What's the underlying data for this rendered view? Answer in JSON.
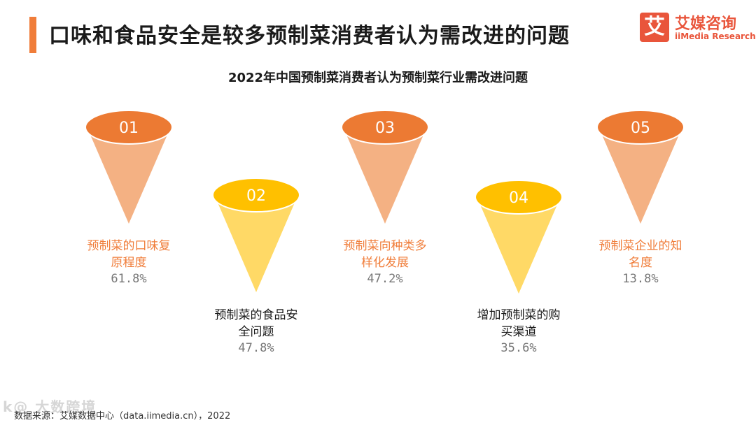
{
  "header": {
    "title": "口味和食品安全是较多预制菜消费者认为需改进的问题"
  },
  "logo": {
    "mark": "艾",
    "name_cn": "艾媒咨询",
    "name_en": "iiMedia Research"
  },
  "colors": {
    "accent": "#f07d3a",
    "orange_cap": "#ec7a33",
    "orange_cone": "#f4b183",
    "yellow_cap": "#ffc000",
    "yellow_cone": "#ffd966",
    "logo_red": "#e9553b"
  },
  "chart_data": {
    "type": "bar",
    "title": "2022年中国预制菜消费者认为预制菜行业需改进问题",
    "unit": "%",
    "categories": [
      "预制菜的口味复原程度",
      "预制菜的食品安全问题",
      "预制菜向种类多样化发展",
      "增加预制菜的购买渠道",
      "预制菜企业的知名度"
    ],
    "numbers": [
      "01",
      "02",
      "03",
      "04",
      "05"
    ],
    "values": [
      61.8,
      47.8,
      47.2,
      35.6,
      13.8
    ],
    "value_labels": [
      "61.8%",
      "47.8%",
      "47.2%",
      "35.6%",
      "13.8%"
    ],
    "label_lines": [
      [
        "预制菜的口味复",
        "原程度"
      ],
      [
        "预制菜的食品安",
        "全问题"
      ],
      [
        "预制菜向种类多",
        "样化发展"
      ],
      [
        "增加预制菜的购",
        "买渠道"
      ],
      [
        "预制菜企业的知",
        "名度"
      ]
    ]
  },
  "footer": {
    "source": "数据来源：艾媒数据中心（data.iimedia.cn），2022",
    "watermark": "k@ 大数跨境"
  }
}
